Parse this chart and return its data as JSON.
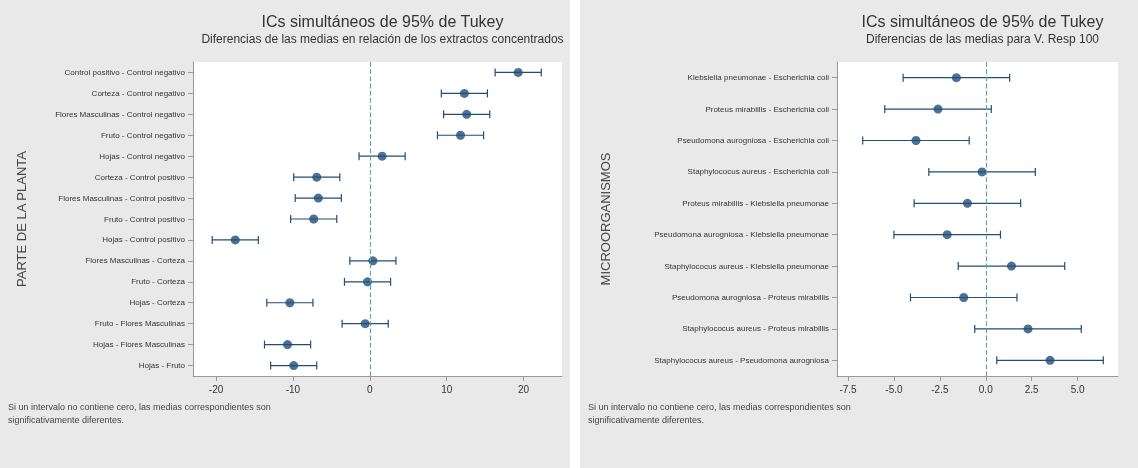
{
  "chart_data": [
    {
      "type": "scatter",
      "orientation": "horizontal",
      "title": "ICs simultáneos de 95% de Tukey",
      "subtitle": "Diferencias de las medias en relación de los extractos concentrados",
      "ylabel": "PARTE DE LA PLANTA",
      "categories": [
        "Control positivo - Control negativo",
        "Corteza - Control negativo",
        "Flores Masculinas - Control negativo",
        "Fruto - Control negativo",
        "Hojas - Control negativo",
        "Corteza - Control positivo",
        "Flores Masculinas - Control positivo",
        "Fruto - Control positivo",
        "Hojas - Control positivo",
        "Flores Masculinas - Corteza",
        "Fruto - Corteza",
        "Hojas - Corteza",
        "Fruto - Flores Masculinas",
        "Hojas - Flores Masculinas",
        "Hojas - Fruto"
      ],
      "series": [
        {
          "color": "#1f4e79",
          "values": [
            19.3,
            12.3,
            12.6,
            11.8,
            1.6,
            -6.9,
            -6.7,
            -7.3,
            -17.5,
            0.4,
            -0.3,
            -10.4,
            -0.6,
            -10.7,
            -9.9
          ],
          "errors": [
            3,
            3,
            3,
            3,
            3,
            3,
            3,
            3,
            3,
            3,
            3,
            3,
            3,
            3,
            3
          ]
        }
      ],
      "xlim": [
        -23,
        25
      ],
      "xticks": [
        -20,
        -10,
        0,
        10,
        20
      ],
      "grid": false,
      "marker": "circle",
      "ref_lines": [
        {
          "axis": "x",
          "value": 0,
          "color": "#5fa89e",
          "line_style": "dashed"
        }
      ],
      "annotations": [
        "Si un intervalo no contiene cero, las medias correspondientes son significativamente diferentes."
      ]
    },
    {
      "type": "scatter",
      "orientation": "horizontal",
      "title": "ICs simultáneos de 95% de Tukey",
      "subtitle": "Diferencias de las medias para V. Resp 100",
      "ylabel": "MICROORGANISMOS",
      "categories": [
        "Klebsiella pneumonae - Escherichia coli",
        "Proteus mirabillis - Escherichia coli",
        "Pseudomona aurogniosa - Escherichia coli",
        "Staphylococus aureus - Escherichia coli",
        "Proteus mirabillis - Klebsiella pneumonae",
        "Pseudomona aurogniosa - Klebsiella pneumonae",
        "Staphylococus aureus - Klebsiella pneumonae",
        "Pseudomona aurogniosa - Proteus mirabillis",
        "Staphylococus aureus - Proteus mirabillis",
        "Staphylococus aureus - Pseudomona aurogniosa"
      ],
      "series": [
        {
          "color": "#1f4e79",
          "values": [
            -1.6,
            -2.6,
            -3.8,
            -0.2,
            -1.0,
            -2.1,
            1.4,
            -1.2,
            2.3,
            3.5
          ],
          "errors": [
            2.9,
            2.9,
            2.9,
            2.9,
            2.9,
            2.9,
            2.9,
            2.9,
            2.9,
            2.9
          ]
        }
      ],
      "xlim": [
        -8.1,
        7.2
      ],
      "xticks": [
        -7.5,
        {
          "value": -5,
          "label": "-5.0"
        },
        -2.5,
        {
          "value": 0,
          "label": "0.0"
        },
        2.5,
        {
          "value": 5,
          "label": "5.0"
        }
      ],
      "grid": false,
      "marker": "circle",
      "ref_lines": [
        {
          "axis": "x",
          "value": 0,
          "color": "#5fa89e",
          "line_style": "dashed"
        }
      ],
      "annotations": [
        "Si un intervalo no contiene cero, las medias correspondientes son significativamente diferentes."
      ]
    }
  ]
}
